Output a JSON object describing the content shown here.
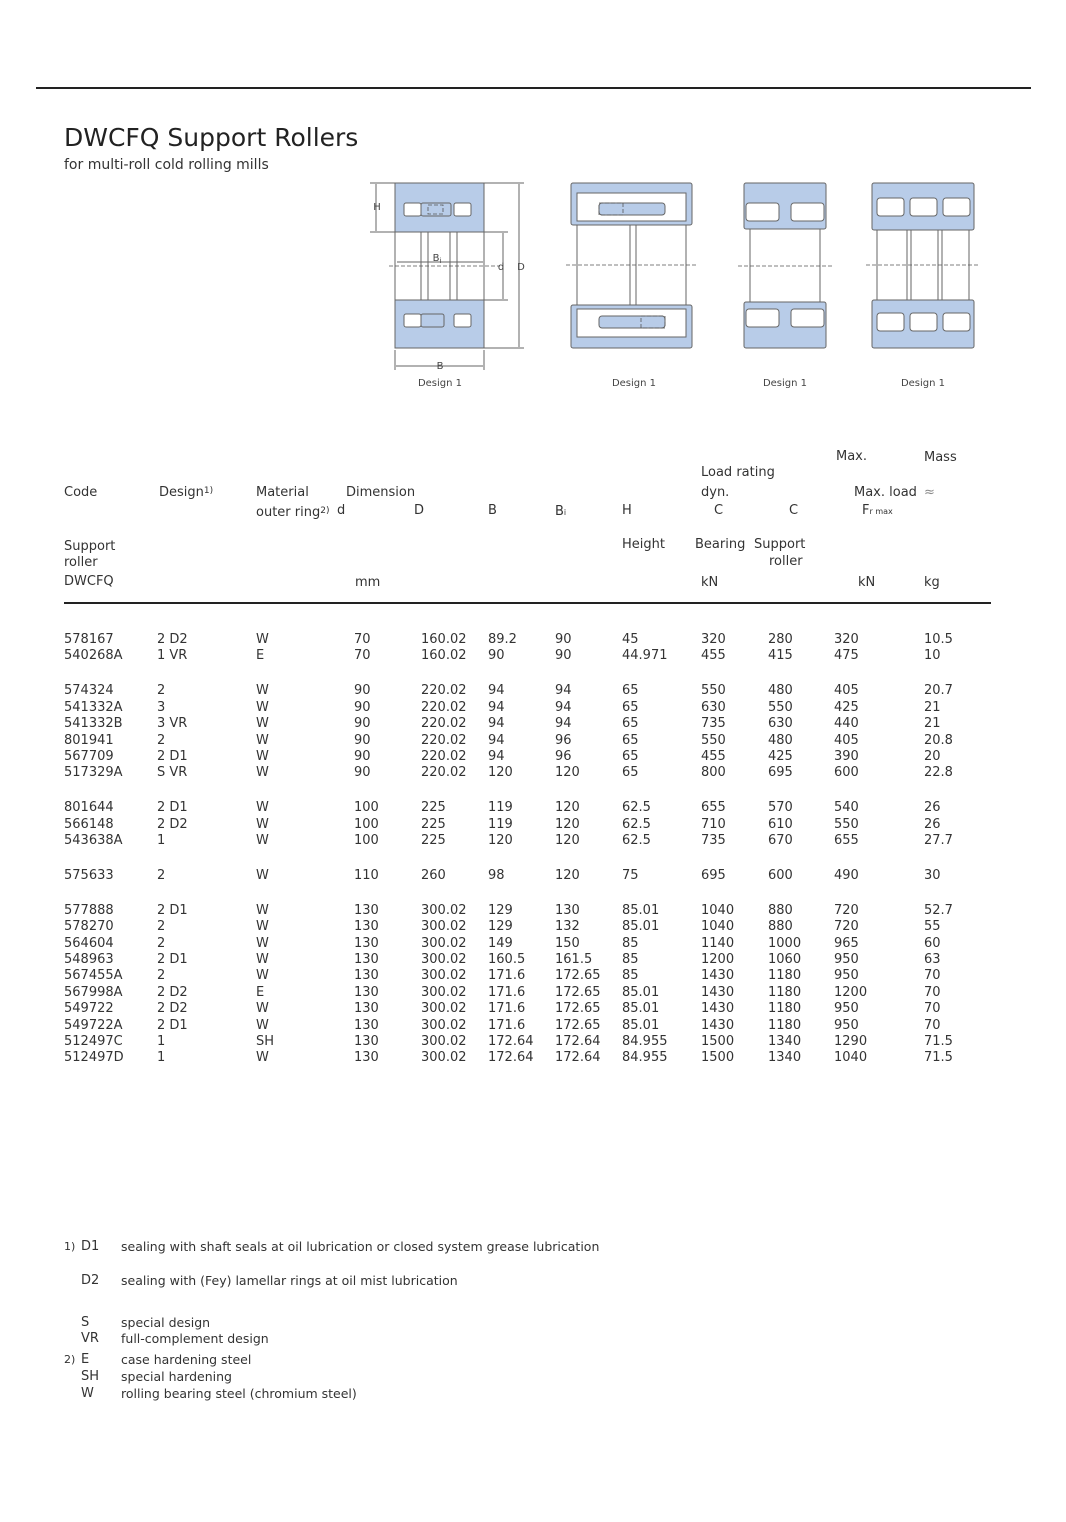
{
  "header": {
    "title": "DWCFQ Support Rollers",
    "subtitle": "for multi-roll cold rolling mills"
  },
  "diagrams": {
    "designs": [
      "Design 1",
      "Design 1",
      "Design 1",
      "Design 1"
    ],
    "labels": {
      "H": "H",
      "Bi": "B",
      "Bi_sub": "i",
      "d": "d",
      "D": "D",
      "B": "B"
    }
  },
  "table": {
    "header": {
      "max_top": "Max.",
      "mass": "Mass",
      "load_rating": "Load rating",
      "code": "Code",
      "design": "Design",
      "design_ref": "1)",
      "material": "Material",
      "dimension": "Dimension",
      "dyn": "dyn.",
      "max_load": "Max. load",
      "approx": "≈",
      "outer_ring": "outer ring",
      "outer_ring_ref": "2)",
      "d": "d",
      "D": "D",
      "B": "B",
      "Bi": "B",
      "Bi_sub": "i",
      "H": "H",
      "C1": "C",
      "C2": "C",
      "F": "F",
      "F_sub": "r max",
      "support": "Support",
      "roller": "roller",
      "code_unit": "DWCFQ",
      "height": "Height",
      "bearing": "Bearing",
      "support_roller": "Support",
      "support_roller2": "roller",
      "mm": "mm",
      "kN": "kN",
      "kN2": "kN",
      "kg": "kg"
    },
    "groups": [
      [
        [
          "578167",
          "2 D2",
          "W",
          "70",
          "160.02",
          "89.2",
          "90",
          "45",
          "320",
          "280",
          "320",
          "10.5"
        ],
        [
          "540268A",
          "1 VR",
          "E",
          "70",
          "160.02",
          "90",
          "90",
          "44.971",
          "455",
          "415",
          "475",
          "10"
        ]
      ],
      [
        [
          "574324",
          "2",
          "W",
          "90",
          "220.02",
          "94",
          "94",
          "65",
          "550",
          "480",
          "405",
          "20.7"
        ],
        [
          "541332A",
          "3",
          "W",
          "90",
          "220.02",
          "94",
          "94",
          "65",
          "630",
          "550",
          "425",
          "21"
        ],
        [
          "541332B",
          "3 VR",
          "W",
          "90",
          "220.02",
          "94",
          "94",
          "65",
          "735",
          "630",
          "440",
          "21"
        ],
        [
          "801941",
          "2",
          "W",
          "90",
          "220.02",
          "94",
          "96",
          "65",
          "550",
          "480",
          "405",
          "20.8"
        ],
        [
          "567709",
          "2 D1",
          "W",
          "90",
          "220.02",
          "94",
          "96",
          "65",
          "455",
          "425",
          "390",
          "20"
        ],
        [
          "517329A",
          "S VR",
          "W",
          "90",
          "220.02",
          "120",
          "120",
          "65",
          "800",
          "695",
          "600",
          "22.8"
        ]
      ],
      [
        [
          "801644",
          "2 D1",
          "W",
          "100",
          "225",
          "119",
          "120",
          "62.5",
          "655",
          "570",
          "540",
          "26"
        ],
        [
          "566148",
          "2 D2",
          "W",
          "100",
          "225",
          "119",
          "120",
          "62.5",
          "710",
          "610",
          "550",
          "26"
        ],
        [
          "543638A",
          "1",
          "W",
          "100",
          "225",
          "120",
          "120",
          "62.5",
          "735",
          "670",
          "655",
          "27.7"
        ]
      ],
      [
        [
          "575633",
          "2",
          "W",
          "110",
          "260",
          "98",
          "120",
          "75",
          "695",
          "600",
          "490",
          "30"
        ]
      ],
      [
        [
          "577888",
          "2 D1",
          "W",
          "130",
          "300.02",
          "129",
          "130",
          "85.01",
          "1040",
          "880",
          "720",
          "52.7"
        ],
        [
          "578270",
          "2",
          "W",
          "130",
          "300.02",
          "129",
          "132",
          "85.01",
          "1040",
          "880",
          "720",
          "55"
        ],
        [
          "564604",
          "2",
          "W",
          "130",
          "300.02",
          "149",
          "150",
          "85",
          "1140",
          "1000",
          "965",
          "60"
        ],
        [
          "548963",
          "2 D1",
          "W",
          "130",
          "300.02",
          "160.5",
          "161.5",
          "85",
          "1200",
          "1060",
          "950",
          "63"
        ],
        [
          "567455A",
          "2",
          "W",
          "130",
          "300.02",
          "171.6",
          "172.65",
          "85",
          "1430",
          "1180",
          "950",
          "70"
        ],
        [
          "567998A",
          "2 D2",
          "E",
          "130",
          "300.02",
          "171.6",
          "172.65",
          "85.01",
          "1430",
          "1180",
          "1200",
          "70"
        ],
        [
          "549722",
          "2 D2",
          "W",
          "130",
          "300.02",
          "171.6",
          "172.65",
          "85.01",
          "1430",
          "1180",
          "950",
          "70"
        ],
        [
          "549722A",
          "2 D1",
          "W",
          "130",
          "300.02",
          "171.6",
          "172.65",
          "85.01",
          "1430",
          "1180",
          "950",
          "70"
        ],
        [
          "512497C",
          "1",
          "SH",
          "130",
          "300.02",
          "172.64",
          "172.64",
          "84.955",
          "1500",
          "1340",
          "1290",
          "71.5"
        ],
        [
          "512497D",
          "1",
          "W",
          "130",
          "300.02",
          "172.64",
          "172.64",
          "84.955",
          "1500",
          "1340",
          "1040",
          "71.5"
        ]
      ]
    ]
  },
  "footnotes": [
    {
      "ref": "1)",
      "code": "D1",
      "text": "sealing with shaft seals at oil lubrication or closed system grease lubrication"
    },
    {
      "code": "D2",
      "text": "sealing with (Fey) lamellar rings at oil mist lubrication"
    },
    {
      "code": "S",
      "text": "special design"
    },
    {
      "code": "VR",
      "text": "full-complement design"
    },
    {
      "ref": "2)",
      "code": "E",
      "text": "case hardening steel"
    },
    {
      "code": "SH",
      "text": "special hardening"
    },
    {
      "code": "W",
      "text": "rolling bearing steel (chromium steel)"
    }
  ]
}
